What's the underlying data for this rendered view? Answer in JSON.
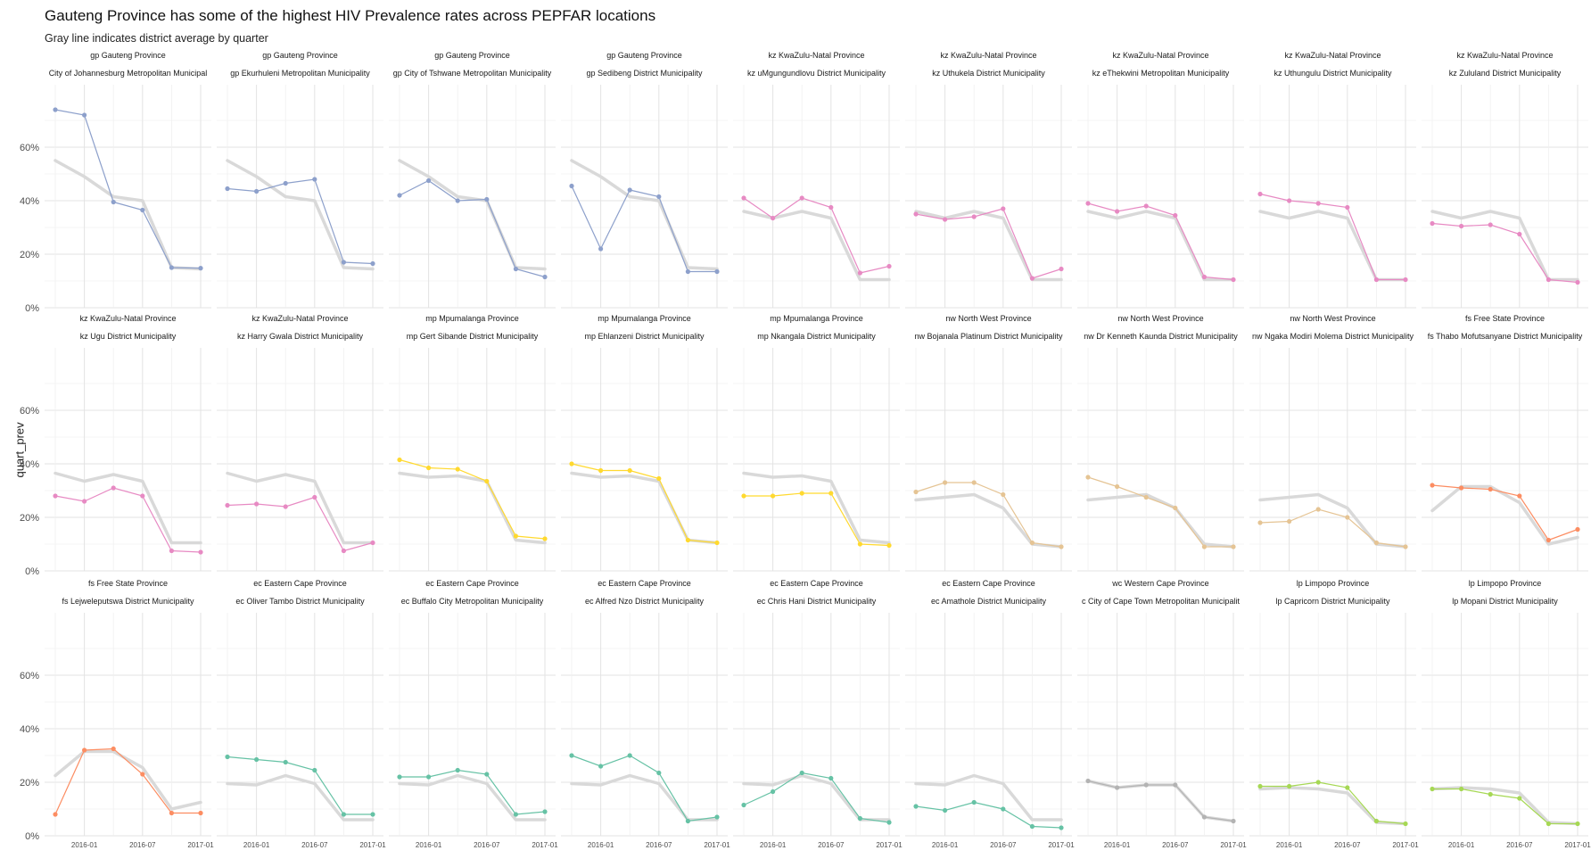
{
  "title": "Gauteng Province has some of the highest HIV Prevalence rates across PEPFAR locations",
  "subtitle": "Gray line indicates district average by quarter",
  "ylabel": "quart_prev",
  "colors": {
    "gp": "#8DA0CB",
    "kz": "#E78AC3",
    "mp": "#FFD92F",
    "nw": "#E5C494",
    "fs": "#FC8D62",
    "ec": "#66C2A5",
    "wc": "#B3B3B3",
    "lp": "#A6D854",
    "average": "#d9d9d9"
  },
  "chart_data": {
    "type": "line",
    "x": [
      "2015-10",
      "2016-01",
      "2016-04",
      "2016-07",
      "2016-10",
      "2017-01"
    ],
    "x_tick_labels": [
      "2016-01",
      "2016-07",
      "2017-01"
    ],
    "y_ticks": [
      "0%",
      "20%",
      "40%",
      "60%"
    ],
    "ylim": [
      0,
      0.8
    ],
    "grid": true,
    "legend": "none",
    "panels": [
      {
        "province": "gp Gauteng Province",
        "district": "City of Johannesburg Metropolitan Municipal",
        "group": "gp",
        "values": [
          0.74,
          0.72,
          0.395,
          0.365,
          0.15,
          0.148
        ],
        "average": [
          0.55,
          0.49,
          0.415,
          0.4,
          0.15,
          0.145
        ]
      },
      {
        "province": "gp Gauteng Province",
        "district": "gp Ekurhuleni Metropolitan Municipality",
        "group": "gp",
        "values": [
          0.445,
          0.435,
          0.465,
          0.48,
          0.17,
          0.165
        ],
        "average": [
          0.55,
          0.49,
          0.415,
          0.4,
          0.15,
          0.145
        ]
      },
      {
        "province": "gp Gauteng Province",
        "district": "gp City of Tshwane Metropolitan Municipality",
        "group": "gp",
        "values": [
          0.42,
          0.475,
          0.4,
          0.405,
          0.145,
          0.115
        ],
        "average": [
          0.55,
          0.49,
          0.415,
          0.4,
          0.15,
          0.145
        ]
      },
      {
        "province": "gp Gauteng Province",
        "district": "gp Sedibeng District Municipality",
        "group": "gp",
        "values": [
          0.455,
          0.22,
          0.44,
          0.415,
          0.135,
          0.135
        ],
        "average": [
          0.55,
          0.49,
          0.415,
          0.4,
          0.15,
          0.145
        ]
      },
      {
        "province": "kz KwaZulu-Natal Province",
        "district": "kz uMgungundlovu District Municipality",
        "group": "kz",
        "values": [
          0.41,
          0.335,
          0.41,
          0.375,
          0.13,
          0.155
        ],
        "average": [
          0.36,
          0.335,
          0.36,
          0.335,
          0.105,
          0.105
        ]
      },
      {
        "province": "kz KwaZulu-Natal Province",
        "district": "kz Uthukela District Municipality",
        "group": "kz",
        "values": [
          0.35,
          0.33,
          0.34,
          0.37,
          0.11,
          0.145
        ],
        "average": [
          0.36,
          0.335,
          0.36,
          0.335,
          0.105,
          0.105
        ]
      },
      {
        "province": "kz KwaZulu-Natal Province",
        "district": "kz eThekwini Metropolitan Municipality",
        "group": "kz",
        "values": [
          0.39,
          0.36,
          0.38,
          0.345,
          0.115,
          0.105
        ],
        "average": [
          0.36,
          0.335,
          0.36,
          0.335,
          0.105,
          0.105
        ]
      },
      {
        "province": "kz KwaZulu-Natal Province",
        "district": "kz Uthungulu District Municipality",
        "group": "kz",
        "values": [
          0.425,
          0.4,
          0.39,
          0.375,
          0.105,
          0.105
        ],
        "average": [
          0.36,
          0.335,
          0.36,
          0.335,
          0.105,
          0.105
        ]
      },
      {
        "province": "kz KwaZulu-Natal Province",
        "district": "kz Zululand District Municipality",
        "group": "kz",
        "values": [
          0.315,
          0.305,
          0.31,
          0.275,
          0.105,
          0.095
        ],
        "average": [
          0.36,
          0.335,
          0.36,
          0.335,
          0.105,
          0.105
        ]
      },
      {
        "province": "kz KwaZulu-Natal Province",
        "district": "kz Ugu District Municipality",
        "group": "kz",
        "values": [
          0.28,
          0.26,
          0.31,
          0.28,
          0.075,
          0.07
        ],
        "average": [
          0.365,
          0.335,
          0.36,
          0.335,
          0.105,
          0.105
        ]
      },
      {
        "province": "kz KwaZulu-Natal Province",
        "district": "kz Harry Gwala District Municipality",
        "group": "kz",
        "values": [
          0.245,
          0.25,
          0.24,
          0.275,
          0.075,
          0.105
        ],
        "average": [
          0.365,
          0.335,
          0.36,
          0.335,
          0.105,
          0.105
        ]
      },
      {
        "province": "mp Mpumalanga Province",
        "district": "mp Gert Sibande District Municipality",
        "group": "mp",
        "values": [
          0.415,
          0.385,
          0.38,
          0.335,
          0.13,
          0.12
        ],
        "average": [
          0.365,
          0.35,
          0.355,
          0.335,
          0.115,
          0.105
        ]
      },
      {
        "province": "mp Mpumalanga Province",
        "district": "mp Ehlanzeni District Municipality",
        "group": "mp",
        "values": [
          0.4,
          0.375,
          0.375,
          0.345,
          0.115,
          0.105
        ],
        "average": [
          0.365,
          0.35,
          0.355,
          0.335,
          0.115,
          0.105
        ]
      },
      {
        "province": "mp Mpumalanga Province",
        "district": "mp Nkangala District Municipality",
        "group": "mp",
        "values": [
          0.28,
          0.28,
          0.29,
          0.29,
          0.1,
          0.095
        ],
        "average": [
          0.365,
          0.35,
          0.355,
          0.335,
          0.115,
          0.105
        ]
      },
      {
        "province": "nw North West Province",
        "district": "nw Bojanala Platinum District Municipality",
        "group": "nw",
        "values": [
          0.295,
          0.33,
          0.33,
          0.285,
          0.105,
          0.09
        ],
        "average": [
          0.265,
          0.275,
          0.285,
          0.235,
          0.1,
          0.09
        ]
      },
      {
        "province": "nw North West Province",
        "district": "nw Dr Kenneth Kaunda District Municipality",
        "group": "nw",
        "values": [
          0.35,
          0.315,
          0.275,
          0.235,
          0.09,
          0.09
        ],
        "average": [
          0.265,
          0.275,
          0.285,
          0.235,
          0.1,
          0.09
        ]
      },
      {
        "province": "nw North West Province",
        "district": "nw Ngaka Modiri Molema District Municipality",
        "group": "nw",
        "values": [
          0.18,
          0.185,
          0.23,
          0.2,
          0.105,
          0.09
        ],
        "average": [
          0.265,
          0.275,
          0.285,
          0.235,
          0.1,
          0.09
        ]
      },
      {
        "province": "fs Free State Province",
        "district": "fs Thabo Mofutsanyane District Municipality",
        "group": "fs",
        "values": [
          0.32,
          0.31,
          0.305,
          0.28,
          0.115,
          0.155
        ],
        "average": [
          0.225,
          0.315,
          0.315,
          0.255,
          0.1,
          0.125
        ]
      },
      {
        "province": "fs Free State Province",
        "district": "fs Lejweleputswa District Municipality",
        "group": "fs",
        "values": [
          0.08,
          0.32,
          0.325,
          0.23,
          0.085,
          0.085
        ],
        "average": [
          0.225,
          0.315,
          0.315,
          0.255,
          0.1,
          0.125
        ]
      },
      {
        "province": "ec Eastern Cape Province",
        "district": "ec Oliver Tambo District Municipality",
        "group": "ec",
        "values": [
          0.295,
          0.285,
          0.275,
          0.245,
          0.08,
          0.08
        ],
        "average": [
          0.195,
          0.19,
          0.225,
          0.195,
          0.06,
          0.06
        ]
      },
      {
        "province": "ec Eastern Cape Province",
        "district": "ec Buffalo City Metropolitan Municipality",
        "group": "ec",
        "values": [
          0.22,
          0.22,
          0.245,
          0.23,
          0.08,
          0.09
        ],
        "average": [
          0.195,
          0.19,
          0.225,
          0.195,
          0.06,
          0.06
        ]
      },
      {
        "province": "ec Eastern Cape Province",
        "district": "ec Alfred Nzo District Municipality",
        "group": "ec",
        "values": [
          0.3,
          0.26,
          0.3,
          0.235,
          0.055,
          0.07
        ],
        "average": [
          0.195,
          0.19,
          0.225,
          0.195,
          0.06,
          0.06
        ]
      },
      {
        "province": "ec Eastern Cape Province",
        "district": "ec Chris Hani District Municipality",
        "group": "ec",
        "values": [
          0.115,
          0.165,
          0.235,
          0.215,
          0.065,
          0.05
        ],
        "average": [
          0.195,
          0.19,
          0.225,
          0.195,
          0.06,
          0.06
        ]
      },
      {
        "province": "ec Eastern Cape Province",
        "district": "ec Amathole District Municipality",
        "group": "ec",
        "values": [
          0.11,
          0.095,
          0.125,
          0.1,
          0.035,
          0.03
        ],
        "average": [
          0.195,
          0.19,
          0.225,
          0.195,
          0.06,
          0.06
        ]
      },
      {
        "province": "wc Western Cape Province",
        "district": "c City of Cape Town Metropolitan Municipalit",
        "group": "wc",
        "values": [
          0.205,
          0.18,
          0.19,
          0.19,
          0.07,
          0.055
        ],
        "average": [
          0.205,
          0.18,
          0.19,
          0.19,
          0.07,
          0.055
        ]
      },
      {
        "province": "lp Limpopo Province",
        "district": "lp Capricorn District Municipality",
        "group": "lp",
        "values": [
          0.185,
          0.185,
          0.2,
          0.18,
          0.055,
          0.045
        ],
        "average": [
          0.175,
          0.18,
          0.175,
          0.16,
          0.05,
          0.045
        ]
      },
      {
        "province": "lp Limpopo Province",
        "district": "lp Mopani District Municipality",
        "group": "lp",
        "values": [
          0.175,
          0.175,
          0.155,
          0.14,
          0.045,
          0.045
        ],
        "average": [
          0.175,
          0.18,
          0.175,
          0.16,
          0.05,
          0.045
        ]
      }
    ]
  }
}
